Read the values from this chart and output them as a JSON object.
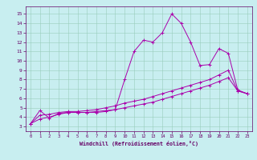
{
  "xlabel": "Windchill (Refroidissement éolien,°C)",
  "ylabel": "",
  "bg_color": "#c8eef0",
  "grid_color": "#99ccbb",
  "line_color": "#aa00aa",
  "x_ticks": [
    0,
    1,
    2,
    3,
    4,
    5,
    6,
    7,
    8,
    9,
    10,
    11,
    12,
    13,
    14,
    15,
    16,
    17,
    18,
    19,
    20,
    21,
    22,
    23
  ],
  "y_ticks": [
    3,
    4,
    5,
    6,
    7,
    8,
    9,
    10,
    11,
    12,
    13,
    14,
    15
  ],
  "xlim": [
    -0.5,
    23.5
  ],
  "ylim": [
    2.5,
    15.8
  ],
  "line1_x": [
    0,
    1,
    2,
    3,
    4,
    5,
    6,
    7,
    8,
    9,
    10,
    11,
    12,
    13,
    14,
    15,
    16,
    17,
    18,
    19,
    20,
    21,
    22,
    23
  ],
  "line1_y": [
    3.3,
    4.7,
    3.9,
    4.4,
    4.5,
    4.5,
    4.5,
    4.5,
    4.6,
    4.8,
    8.0,
    11.0,
    12.2,
    12.0,
    13.0,
    15.0,
    14.0,
    12.0,
    9.5,
    9.6,
    11.3,
    10.8,
    6.9,
    6.5
  ],
  "line2_x": [
    0,
    1,
    2,
    3,
    4,
    5,
    6,
    7,
    8,
    9,
    10,
    11,
    12,
    13,
    14,
    15,
    16,
    17,
    18,
    19,
    20,
    21,
    22,
    23
  ],
  "line2_y": [
    3.3,
    4.2,
    4.3,
    4.5,
    4.6,
    4.6,
    4.7,
    4.8,
    5.0,
    5.2,
    5.5,
    5.7,
    5.9,
    6.2,
    6.5,
    6.8,
    7.1,
    7.4,
    7.7,
    8.0,
    8.5,
    9.0,
    6.8,
    6.5
  ],
  "line3_x": [
    0,
    1,
    2,
    3,
    4,
    5,
    6,
    7,
    8,
    9,
    10,
    11,
    12,
    13,
    14,
    15,
    16,
    17,
    18,
    19,
    20,
    21,
    22,
    23
  ],
  "line3_y": [
    3.3,
    3.8,
    4.0,
    4.3,
    4.5,
    4.5,
    4.5,
    4.6,
    4.7,
    4.8,
    5.0,
    5.2,
    5.4,
    5.6,
    5.9,
    6.2,
    6.5,
    6.8,
    7.1,
    7.4,
    7.8,
    8.2,
    6.8,
    6.5
  ]
}
